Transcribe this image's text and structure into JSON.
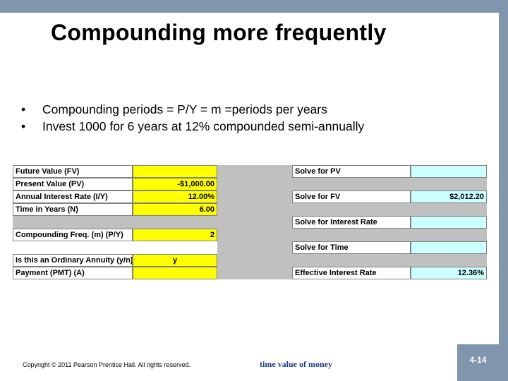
{
  "slide": {
    "title": "Compounding more frequently",
    "bullets": [
      "Compounding periods = P/Y = m =periods per years",
      "Invest 1000 for 6 years at 12% compounded semi-annually"
    ],
    "footer_copyright": "Copyright © 2011 Pearson Prentice Hall. All rights reserved.",
    "footer_topic": "time value of money",
    "page_number": "4-14"
  },
  "spreadsheet": {
    "inputs": [
      {
        "label": "Future Value (FV)",
        "value": ""
      },
      {
        "label": "Present Value (PV)",
        "value": "-$1,000.00"
      },
      {
        "label": "Annual Interest Rate (I/Y)",
        "value": "12.00%"
      },
      {
        "label": "Time in Years (N)",
        "value": "6.00"
      },
      {
        "label": "Compounding Freq. (m) (P/Y)",
        "value": "2"
      },
      {
        "label": "Is this an Ordinary Annuity (y/n)",
        "value": "y"
      },
      {
        "label": "Payment (PMT) (A)",
        "value": ""
      }
    ],
    "outputs": [
      {
        "label": "Solve for PV",
        "value": ""
      },
      {
        "label": "Solve for FV",
        "value": "$2,012.20"
      },
      {
        "label": "Solve for Interest Rate",
        "value": ""
      },
      {
        "label": "Solve for Time",
        "value": ""
      },
      {
        "label": "Effective Interest Rate",
        "value": "12.36%"
      }
    ]
  },
  "colors": {
    "accent_bar": "#7f96ad",
    "input_fill": "#ffff00",
    "output_fill": "#ccffff",
    "sheet_bg": "#c0c0c0",
    "footer_topic": "#1f3a8c"
  }
}
